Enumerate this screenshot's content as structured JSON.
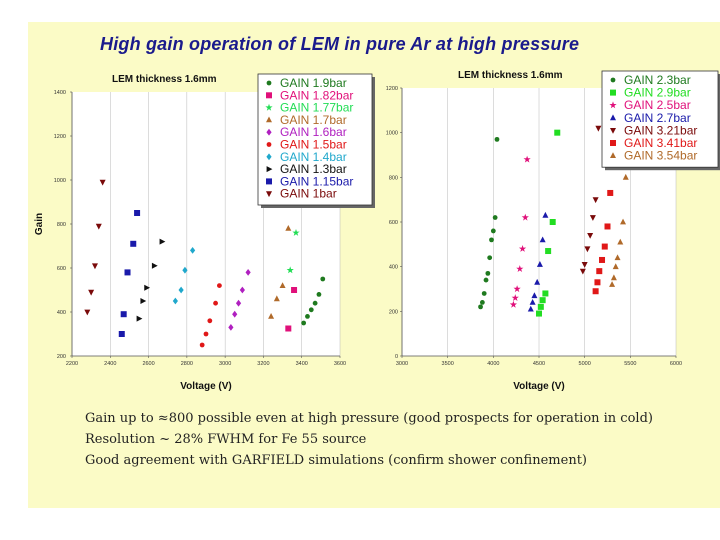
{
  "slide_title": "High gain operation of LEM in pure Ar at high pressure",
  "bullets": [
    "Gain up to ≈800 possible even at high pressure (good prospects for operation in cold)",
    "Resolution ~ 28% FWHM for Fe 55 source",
    "Good agreement with GARFIELD simulations (confirm shower confinement)"
  ],
  "chart_data": [
    {
      "type": "scatter",
      "title": "LEM thickness 1.6mm",
      "xlabel": "Voltage (V)",
      "ylabel": "Gain",
      "xlim": [
        2200,
        3600
      ],
      "ylim": [
        200,
        1400
      ],
      "xticks": [
        "2200",
        "2400",
        "2600",
        "2800",
        "3000",
        "3200",
        "3400",
        "3600"
      ],
      "yticks": [
        "200",
        "400",
        "600",
        "800",
        "1000",
        "1200",
        "1400"
      ],
      "legend_position": "top-right",
      "series": [
        {
          "name": "GAIN 1.9bar",
          "color": "#1f7a1f",
          "marker": "circle",
          "x": [
            3410,
            3430,
            3450,
            3470,
            3490,
            3510
          ],
          "y": [
            350,
            380,
            410,
            440,
            480,
            550
          ]
        },
        {
          "name": "GAIN 1.82bar",
          "color": "#e0107a",
          "marker": "square",
          "x": [
            3330,
            3360
          ],
          "y": [
            325,
            500
          ]
        },
        {
          "name": "GAIN 1.77bar",
          "color": "#22dd55",
          "marker": "star",
          "x": [
            3340,
            3370
          ],
          "y": [
            590,
            760
          ]
        },
        {
          "name": "GAIN 1.7bar",
          "color": "#b06a2a",
          "marker": "triangle-up",
          "x": [
            3240,
            3270,
            3300,
            3330
          ],
          "y": [
            380,
            460,
            520,
            780
          ]
        },
        {
          "name": "GAIN 1.6bar",
          "color": "#b020c0",
          "marker": "diamond",
          "x": [
            3030,
            3050,
            3070,
            3090,
            3120
          ],
          "y": [
            330,
            390,
            440,
            500,
            580
          ]
        },
        {
          "name": "GAIN 1.5bar",
          "color": "#e01818",
          "marker": "circle",
          "x": [
            2880,
            2900,
            2920,
            2950,
            2970
          ],
          "y": [
            250,
            300,
            360,
            440,
            520
          ]
        },
        {
          "name": "GAIN 1.4bar",
          "color": "#20a8cc",
          "marker": "diamond",
          "x": [
            2740,
            2770,
            2790,
            2830
          ],
          "y": [
            450,
            500,
            590,
            680
          ]
        },
        {
          "name": "GAIN 1.3bar",
          "color": "#111111",
          "marker": "triangle-right",
          "x": [
            2550,
            2570,
            2590,
            2630,
            2670
          ],
          "y": [
            370,
            450,
            510,
            610,
            720
          ]
        },
        {
          "name": "GAIN 1.15bar",
          "color": "#1a1aaa",
          "marker": "square",
          "x": [
            2460,
            2470,
            2490,
            2520,
            2540
          ],
          "y": [
            300,
            390,
            580,
            710,
            850
          ]
        },
        {
          "name": "GAIN 1bar",
          "color": "#7a0a0a",
          "marker": "triangle-down",
          "x": [
            2280,
            2300,
            2320,
            2340,
            2360
          ],
          "y": [
            400,
            490,
            610,
            790,
            990
          ]
        }
      ]
    },
    {
      "type": "scatter",
      "title": "LEM  thickness 1.6mm",
      "xlabel": "Voltage (V)",
      "ylabel": "",
      "xlim": [
        3000,
        6000
      ],
      "ylim": [
        0,
        1200
      ],
      "xticks": [
        "3000",
        "3500",
        "4000",
        "4500",
        "5000",
        "5500",
        "6000"
      ],
      "yticks": [
        "0",
        "200",
        "400",
        "600",
        "800",
        "1000",
        "1200"
      ],
      "legend_position": "top-right",
      "series": [
        {
          "name": "GAIN 2.3bar",
          "color": "#1f7a1f",
          "marker": "circle",
          "x": [
            3860,
            3880,
            3900,
            3920,
            3940,
            3960,
            3980,
            4000,
            4020,
            4040
          ],
          "y": [
            220,
            240,
            280,
            340,
            370,
            440,
            520,
            560,
            620,
            970
          ]
        },
        {
          "name": "GAIN 2.9bar",
          "color": "#22dd22",
          "marker": "square",
          "x": [
            4500,
            4520,
            4540,
            4570,
            4600,
            4650,
            4700
          ],
          "y": [
            190,
            220,
            250,
            280,
            470,
            600,
            1000
          ]
        },
        {
          "name": "GAIN 2.5bar",
          "color": "#e0107a",
          "marker": "star",
          "x": [
            4220,
            4240,
            4260,
            4290,
            4320,
            4350,
            4370
          ],
          "y": [
            230,
            260,
            300,
            390,
            480,
            620,
            880
          ]
        },
        {
          "name": "GAIN 2.7bar",
          "color": "#1a1aaa",
          "marker": "triangle-up",
          "x": [
            4410,
            4430,
            4450,
            4480,
            4510,
            4540,
            4570
          ],
          "y": [
            210,
            240,
            270,
            330,
            410,
            520,
            630
          ]
        },
        {
          "name": "GAIN 3.21bar",
          "color": "#7a0a0a",
          "marker": "triangle-down",
          "x": [
            4980,
            5000,
            5030,
            5060,
            5090,
            5120,
            5150
          ],
          "y": [
            380,
            410,
            480,
            540,
            620,
            700,
            1020
          ]
        },
        {
          "name": "GAIN 3.41bar",
          "color": "#e01818",
          "marker": "square",
          "x": [
            5120,
            5140,
            5160,
            5190,
            5220,
            5250,
            5280
          ],
          "y": [
            290,
            330,
            380,
            430,
            490,
            580,
            730
          ]
        },
        {
          "name": "GAIN 3.54bar",
          "color": "#b06a2a",
          "marker": "triangle-up",
          "x": [
            5300,
            5320,
            5340,
            5360,
            5390,
            5420,
            5450
          ],
          "y": [
            320,
            350,
            400,
            440,
            510,
            600,
            800
          ]
        }
      ]
    }
  ]
}
